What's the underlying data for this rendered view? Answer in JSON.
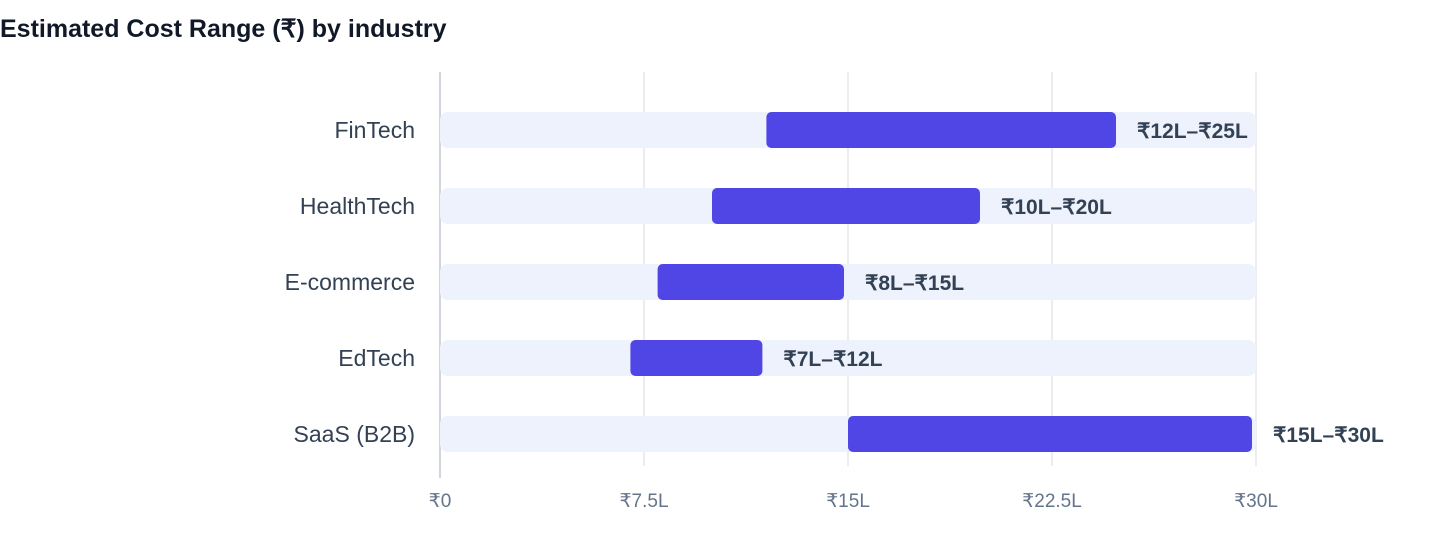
{
  "chart_data": {
    "type": "bar",
    "orientation": "horizontal",
    "subtype": "range",
    "title": "Estimated Cost Range (₹) by industry",
    "xlabel": "",
    "ylabel": "",
    "xlim": [
      0,
      30
    ],
    "unit": "L (lakh ₹)",
    "x_ticks": [
      {
        "value": 0,
        "label": "₹0"
      },
      {
        "value": 7.5,
        "label": "₹7.5L"
      },
      {
        "value": 15,
        "label": "₹15L"
      },
      {
        "value": 22.5,
        "label": "₹22.5L"
      },
      {
        "value": 30,
        "label": "₹30L"
      }
    ],
    "grid": true,
    "legend": "none",
    "categories": [
      "FinTech",
      "HealthTech",
      "E-commerce",
      "EdTech",
      "SaaS (B2B)"
    ],
    "ranges": [
      {
        "low": 12,
        "high": 25,
        "label": "₹12L–₹25L"
      },
      {
        "low": 10,
        "high": 20,
        "label": "₹10L–₹20L"
      },
      {
        "low": 8,
        "high": 15,
        "label": "₹8L–₹15L"
      },
      {
        "low": 7,
        "high": 12,
        "label": "₹7L–₹12L"
      },
      {
        "low": 15,
        "high": 30,
        "label": "₹15L–₹30L"
      }
    ],
    "colors": {
      "range_bar": "#4f46e5",
      "track": "#eef2fd",
      "grid": "#e5e7eb",
      "axis": "#d1d5db"
    }
  }
}
